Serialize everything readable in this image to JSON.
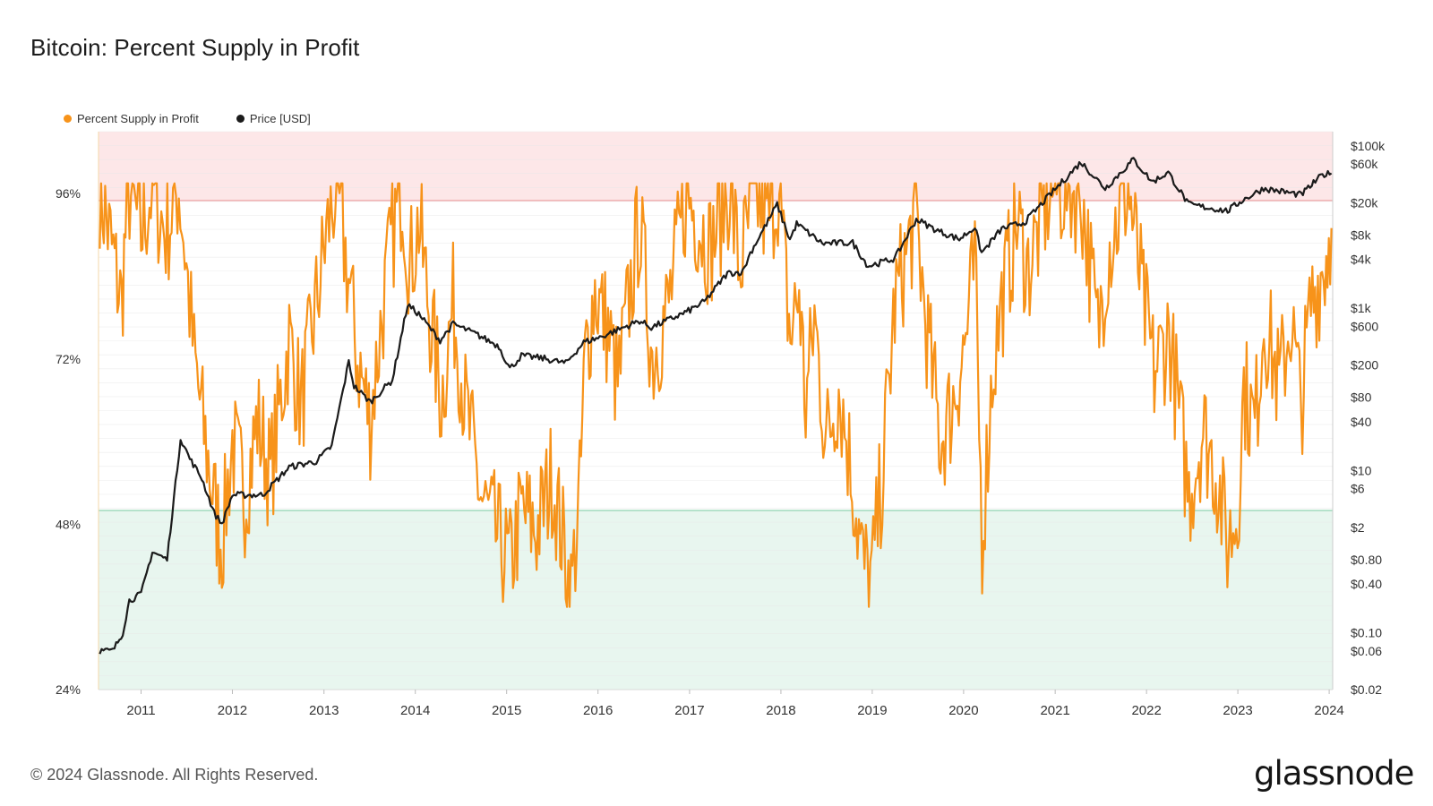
{
  "title": "Bitcoin: Percent Supply in Profit",
  "footer": "© 2024 Glassnode. All Rights Reserved.",
  "logo": "glassnode",
  "colors": {
    "supply": "#f7931a",
    "price": "#1b1b1b",
    "red_zone": "#fde7e8",
    "red_line": "#ec9a9c",
    "green_zone": "#e8f6ef",
    "green_line": "#8fd3b0",
    "grid": "#e7e7e7"
  },
  "chart_data": {
    "type": "line",
    "title": "Bitcoin: Percent Supply in Profit",
    "x_range": [
      "2010-07-15",
      "2024-01-15"
    ],
    "x_ticks": [
      "2011",
      "2012",
      "2013",
      "2014",
      "2015",
      "2016",
      "2017",
      "2018",
      "2019",
      "2020",
      "2021",
      "2022",
      "2023",
      "2024"
    ],
    "left_axis": {
      "unit": "%",
      "range": [
        24,
        105
      ],
      "ticks": [
        96,
        72,
        48,
        24
      ],
      "tick_labels": [
        "96%",
        "72%",
        "48%",
        "24%"
      ]
    },
    "right_axis": {
      "scale": "log",
      "range": [
        0.02,
        150000
      ],
      "ticks": [
        100000,
        60000,
        20000,
        8000,
        4000,
        1000,
        600,
        200,
        80,
        40,
        10,
        6,
        2,
        0.8,
        0.4,
        0.1,
        0.06,
        0.02
      ],
      "tick_labels": [
        "$100k",
        "$60k",
        "$20k",
        "$8k",
        "$4k",
        "$1k",
        "$600",
        "$200",
        "$80",
        "$40",
        "$10",
        "$6",
        "$2",
        "$0.80",
        "$0.40",
        "$0.10",
        "$0.06",
        "$0.02"
      ]
    },
    "bands": [
      {
        "name": "upper",
        "from": 95,
        "to": 105
      },
      {
        "name": "lower",
        "from": 24,
        "to": 50
      }
    ],
    "grid": true,
    "legend_position": "top-left",
    "series": [
      {
        "name": "Percent Supply in Profit",
        "axis": "left",
        "color": "#f7931a",
        "points": [
          [
            "2010-07-20",
            97
          ],
          [
            "2010-09-01",
            89
          ],
          [
            "2010-10-15",
            80
          ],
          [
            "2010-11-10",
            97
          ],
          [
            "2011-01-01",
            90
          ],
          [
            "2011-02-15",
            97
          ],
          [
            "2011-04-10",
            90
          ],
          [
            "2011-06-01",
            97
          ],
          [
            "2011-06-25",
            88
          ],
          [
            "2011-08-01",
            72
          ],
          [
            "2011-09-15",
            60
          ],
          [
            "2011-10-25",
            50
          ],
          [
            "2011-11-20",
            45
          ],
          [
            "2012-01-01",
            60
          ],
          [
            "2012-02-20",
            52
          ],
          [
            "2012-04-10",
            63
          ],
          [
            "2012-06-01",
            55
          ],
          [
            "2012-08-15",
            75
          ],
          [
            "2012-10-01",
            65
          ],
          [
            "2012-12-01",
            80
          ],
          [
            "2013-01-10",
            90
          ],
          [
            "2013-02-20",
            97
          ],
          [
            "2013-04-15",
            82
          ],
          [
            "2013-05-10",
            73
          ],
          [
            "2013-07-05",
            63
          ],
          [
            "2013-08-20",
            78
          ],
          [
            "2013-10-01",
            90
          ],
          [
            "2013-11-10",
            97
          ],
          [
            "2013-12-10",
            85
          ],
          [
            "2014-01-15",
            92
          ],
          [
            "2014-03-01",
            78
          ],
          [
            "2014-04-15",
            66
          ],
          [
            "2014-06-01",
            80
          ],
          [
            "2014-07-20",
            65
          ],
          [
            "2014-09-20",
            52
          ],
          [
            "2014-11-01",
            48
          ],
          [
            "2015-01-15",
            42
          ],
          [
            "2015-03-01",
            50
          ],
          [
            "2015-05-01",
            47
          ],
          [
            "2015-07-01",
            55
          ],
          [
            "2015-08-25",
            43
          ],
          [
            "2015-09-15",
            38
          ],
          [
            "2015-10-20",
            52
          ],
          [
            "2015-11-10",
            72
          ],
          [
            "2015-12-20",
            82
          ],
          [
            "2016-02-10",
            76
          ],
          [
            "2016-03-20",
            68
          ],
          [
            "2016-06-15",
            92
          ],
          [
            "2016-08-05",
            72
          ],
          [
            "2016-10-10",
            80
          ],
          [
            "2016-12-20",
            96
          ],
          [
            "2017-03-25",
            88
          ],
          [
            "2017-06-10",
            97
          ],
          [
            "2017-07-20",
            85
          ],
          [
            "2017-09-20",
            96
          ],
          [
            "2017-11-10",
            92
          ],
          [
            "2017-12-20",
            97
          ],
          [
            "2018-02-08",
            75
          ],
          [
            "2018-03-15",
            82
          ],
          [
            "2018-04-10",
            65
          ],
          [
            "2018-05-15",
            78
          ],
          [
            "2018-07-01",
            60
          ],
          [
            "2018-08-20",
            68
          ],
          [
            "2018-10-01",
            58
          ],
          [
            "2018-11-25",
            42
          ],
          [
            "2018-12-30",
            40
          ],
          [
            "2019-02-10",
            55
          ],
          [
            "2019-04-01",
            80
          ],
          [
            "2019-06-25",
            93
          ],
          [
            "2019-08-01",
            78
          ],
          [
            "2019-10-01",
            60
          ],
          [
            "2019-11-15",
            65
          ],
          [
            "2020-01-10",
            75
          ],
          [
            "2020-02-15",
            86
          ],
          [
            "2020-03-15",
            46
          ],
          [
            "2020-04-25",
            70
          ],
          [
            "2020-06-01",
            80
          ],
          [
            "2020-08-01",
            92
          ],
          [
            "2020-09-15",
            85
          ],
          [
            "2020-12-15",
            97
          ],
          [
            "2021-04-15",
            96
          ],
          [
            "2021-06-20",
            76
          ],
          [
            "2021-08-01",
            88
          ],
          [
            "2021-10-20",
            97
          ],
          [
            "2021-12-20",
            80
          ],
          [
            "2022-02-01",
            70
          ],
          [
            "2022-04-01",
            76
          ],
          [
            "2022-06-20",
            52
          ],
          [
            "2022-08-15",
            62
          ],
          [
            "2022-10-10",
            55
          ],
          [
            "2022-11-20",
            45
          ],
          [
            "2022-12-31",
            50
          ],
          [
            "2023-01-25",
            68
          ],
          [
            "2023-03-10",
            62
          ],
          [
            "2023-04-15",
            78
          ],
          [
            "2023-06-15",
            68
          ],
          [
            "2023-08-01",
            78
          ],
          [
            "2023-09-10",
            65
          ],
          [
            "2023-10-20",
            80
          ],
          [
            "2023-12-15",
            86
          ],
          [
            "2024-01-10",
            91
          ]
        ]
      },
      {
        "name": "Price [USD]",
        "axis": "right",
        "color": "#1b1b1b",
        "points": [
          [
            "2010-07-20",
            0.06
          ],
          [
            "2010-09-10",
            0.06
          ],
          [
            "2010-10-20",
            0.1
          ],
          [
            "2010-11-15",
            0.25
          ],
          [
            "2011-01-01",
            0.3
          ],
          [
            "2011-02-15",
            1
          ],
          [
            "2011-04-15",
            0.8
          ],
          [
            "2011-06-08",
            25
          ],
          [
            "2011-07-15",
            14
          ],
          [
            "2011-09-01",
            8
          ],
          [
            "2011-10-20",
            3
          ],
          [
            "2011-11-20",
            2.2
          ],
          [
            "2012-01-01",
            5
          ],
          [
            "2012-05-01",
            5
          ],
          [
            "2012-08-15",
            11
          ],
          [
            "2012-12-01",
            13
          ],
          [
            "2013-02-01",
            20
          ],
          [
            "2013-04-10",
            220
          ],
          [
            "2013-05-01",
            110
          ],
          [
            "2013-07-05",
            70
          ],
          [
            "2013-10-01",
            130
          ],
          [
            "2013-12-01",
            1100
          ],
          [
            "2014-01-15",
            850
          ],
          [
            "2014-04-10",
            400
          ],
          [
            "2014-06-01",
            640
          ],
          [
            "2014-09-01",
            480
          ],
          [
            "2014-12-01",
            340
          ],
          [
            "2015-01-14",
            180
          ],
          [
            "2015-03-01",
            260
          ],
          [
            "2015-06-01",
            240
          ],
          [
            "2015-08-25",
            210
          ],
          [
            "2015-11-05",
            380
          ],
          [
            "2016-01-01",
            430
          ],
          [
            "2016-06-15",
            700
          ],
          [
            "2016-08-01",
            580
          ],
          [
            "2016-12-20",
            900
          ],
          [
            "2017-03-01",
            1200
          ],
          [
            "2017-06-01",
            2700
          ],
          [
            "2017-08-01",
            2800
          ],
          [
            "2017-09-01",
            4800
          ],
          [
            "2017-12-17",
            19000
          ],
          [
            "2018-02-06",
            7000
          ],
          [
            "2018-03-05",
            11000
          ],
          [
            "2018-06-15",
            6300
          ],
          [
            "2018-10-15",
            6400
          ],
          [
            "2018-12-15",
            3300
          ],
          [
            "2019-04-01",
            4100
          ],
          [
            "2019-06-26",
            12500
          ],
          [
            "2019-09-20",
            9000
          ],
          [
            "2019-12-15",
            7100
          ],
          [
            "2020-02-15",
            10000
          ],
          [
            "2020-03-13",
            4800
          ],
          [
            "2020-06-01",
            9500
          ],
          [
            "2020-09-01",
            11500
          ],
          [
            "2020-12-31",
            29000
          ],
          [
            "2021-04-14",
            63000
          ],
          [
            "2021-07-20",
            30000
          ],
          [
            "2021-11-10",
            68000
          ],
          [
            "2022-01-24",
            36000
          ],
          [
            "2022-03-29",
            47000
          ],
          [
            "2022-06-18",
            19000
          ],
          [
            "2022-11-21",
            15800
          ],
          [
            "2023-01-15",
            21000
          ],
          [
            "2023-04-14",
            30000
          ],
          [
            "2023-09-11",
            25000
          ],
          [
            "2023-12-05",
            44000
          ],
          [
            "2024-01-10",
            46000
          ]
        ]
      }
    ]
  }
}
